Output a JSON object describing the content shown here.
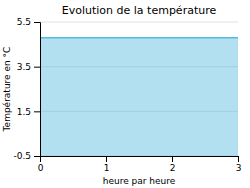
{
  "chart_data": {
    "type": "area",
    "title": "Evolution de la température",
    "xlabel": "heure par heure",
    "ylabel": "Température en °C",
    "x": [
      0,
      3
    ],
    "values": [
      4.8,
      4.8
    ],
    "color": "#55bbdd",
    "xlim": [
      0,
      3
    ],
    "ylim": [
      -0.5,
      5.5
    ],
    "xticks": [
      0,
      1,
      2,
      3
    ],
    "yticks": [
      -0.5,
      1.5,
      3.5,
      5.5
    ],
    "grid": true
  }
}
